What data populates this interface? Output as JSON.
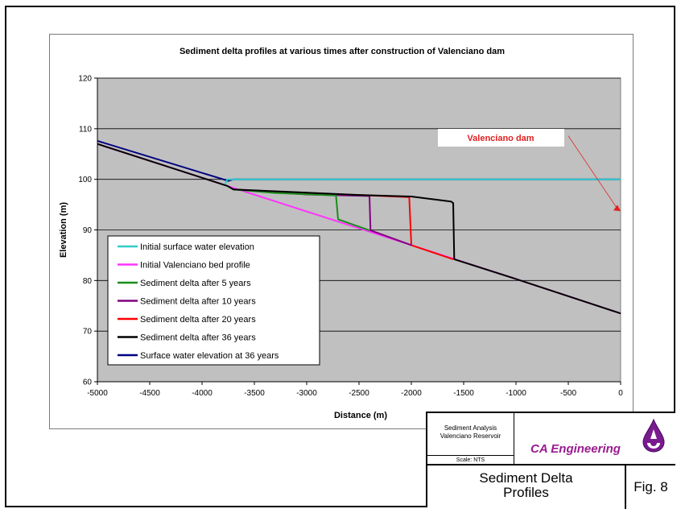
{
  "chart_data": {
    "type": "line",
    "title": "Sediment delta profiles at various times after construction of Valenciano dam",
    "xlabel": "Distance (m)",
    "ylabel": "Elevation (m)",
    "xlim": [
      -5000,
      0
    ],
    "ylim": [
      60,
      120
    ],
    "x_ticks": [
      "-5000",
      "-4500",
      "-4000",
      "-3500",
      "-3000",
      "-2500",
      "-2000",
      "-1500",
      "-1000",
      "-500",
      "0"
    ],
    "y_ticks": [
      "60",
      "70",
      "80",
      "90",
      "100",
      "110",
      "120"
    ],
    "grid": true,
    "plot_background": "#c0c0c0",
    "legend_position": "lower-left",
    "annotation": {
      "text": "Valenciano dam",
      "arrow_from": [
        -500,
        100
      ],
      "arrow_to": [
        0,
        93.7
      ],
      "color": "#e02020"
    },
    "series": [
      {
        "name": "Initial surface water elevation",
        "color": "#33cccc",
        "points": [
          [
            -3780,
            99.0
          ],
          [
            -3760,
            100.0
          ],
          [
            0,
            100.0
          ]
        ]
      },
      {
        "name": "Initial Valenciano bed profile",
        "color": "#ff33ff",
        "points": [
          [
            -5000,
            107.0
          ],
          [
            -3760,
            98.7
          ],
          [
            -2000,
            87.0
          ],
          [
            -1000,
            80.3
          ],
          [
            0,
            73.5
          ]
        ]
      },
      {
        "name": "Sediment delta after 5 years",
        "color": "#1a8c1a",
        "points": [
          [
            -3700,
            98.0
          ],
          [
            -3300,
            97.3
          ],
          [
            -2720,
            96.8
          ],
          [
            -2700,
            92.1
          ],
          [
            -2400,
            89.9
          ]
        ]
      },
      {
        "name": "Sediment delta after 10 years",
        "color": "#800080",
        "points": [
          [
            -3700,
            98.0
          ],
          [
            -3000,
            97.0
          ],
          [
            -2400,
            96.7
          ],
          [
            -2390,
            89.9
          ],
          [
            -2000,
            87.0
          ]
        ]
      },
      {
        "name": "Sediment delta after 20 years",
        "color": "#ff0000",
        "points": [
          [
            -3700,
            98.0
          ],
          [
            -3200,
            97.3
          ],
          [
            -2500,
            96.9
          ],
          [
            -2020,
            96.5
          ],
          [
            -2000,
            87.0
          ],
          [
            -1600,
            84.2
          ]
        ]
      },
      {
        "name": "Sediment delta after 36 years",
        "color": "#000000",
        "points": [
          [
            -5000,
            107.0
          ],
          [
            -3760,
            98.7
          ],
          [
            -3700,
            98.0
          ],
          [
            -2500,
            96.9
          ],
          [
            -2000,
            96.6
          ],
          [
            -1850,
            96.2
          ],
          [
            -1620,
            95.6
          ],
          [
            -1600,
            95.3
          ],
          [
            -1590,
            84.2
          ],
          [
            -1000,
            80.3
          ],
          [
            0,
            73.5
          ]
        ]
      },
      {
        "name": "Surface water elevation  at 36 years",
        "color": "#000080",
        "points": [
          [
            -5000,
            107.6
          ],
          [
            -3750,
            99.7
          ],
          [
            -3700,
            100.0
          ],
          [
            0,
            100.0
          ]
        ]
      }
    ]
  },
  "title_block": {
    "project_line1": "Sediment Analysis",
    "project_line2": "Valenciano Reservoir",
    "scale": "Scale: NTS",
    "company": "CA Engineering",
    "figure_title_line1": "Sediment Delta",
    "figure_title_line2": "Profiles",
    "figure_number": "Fig. 8"
  }
}
